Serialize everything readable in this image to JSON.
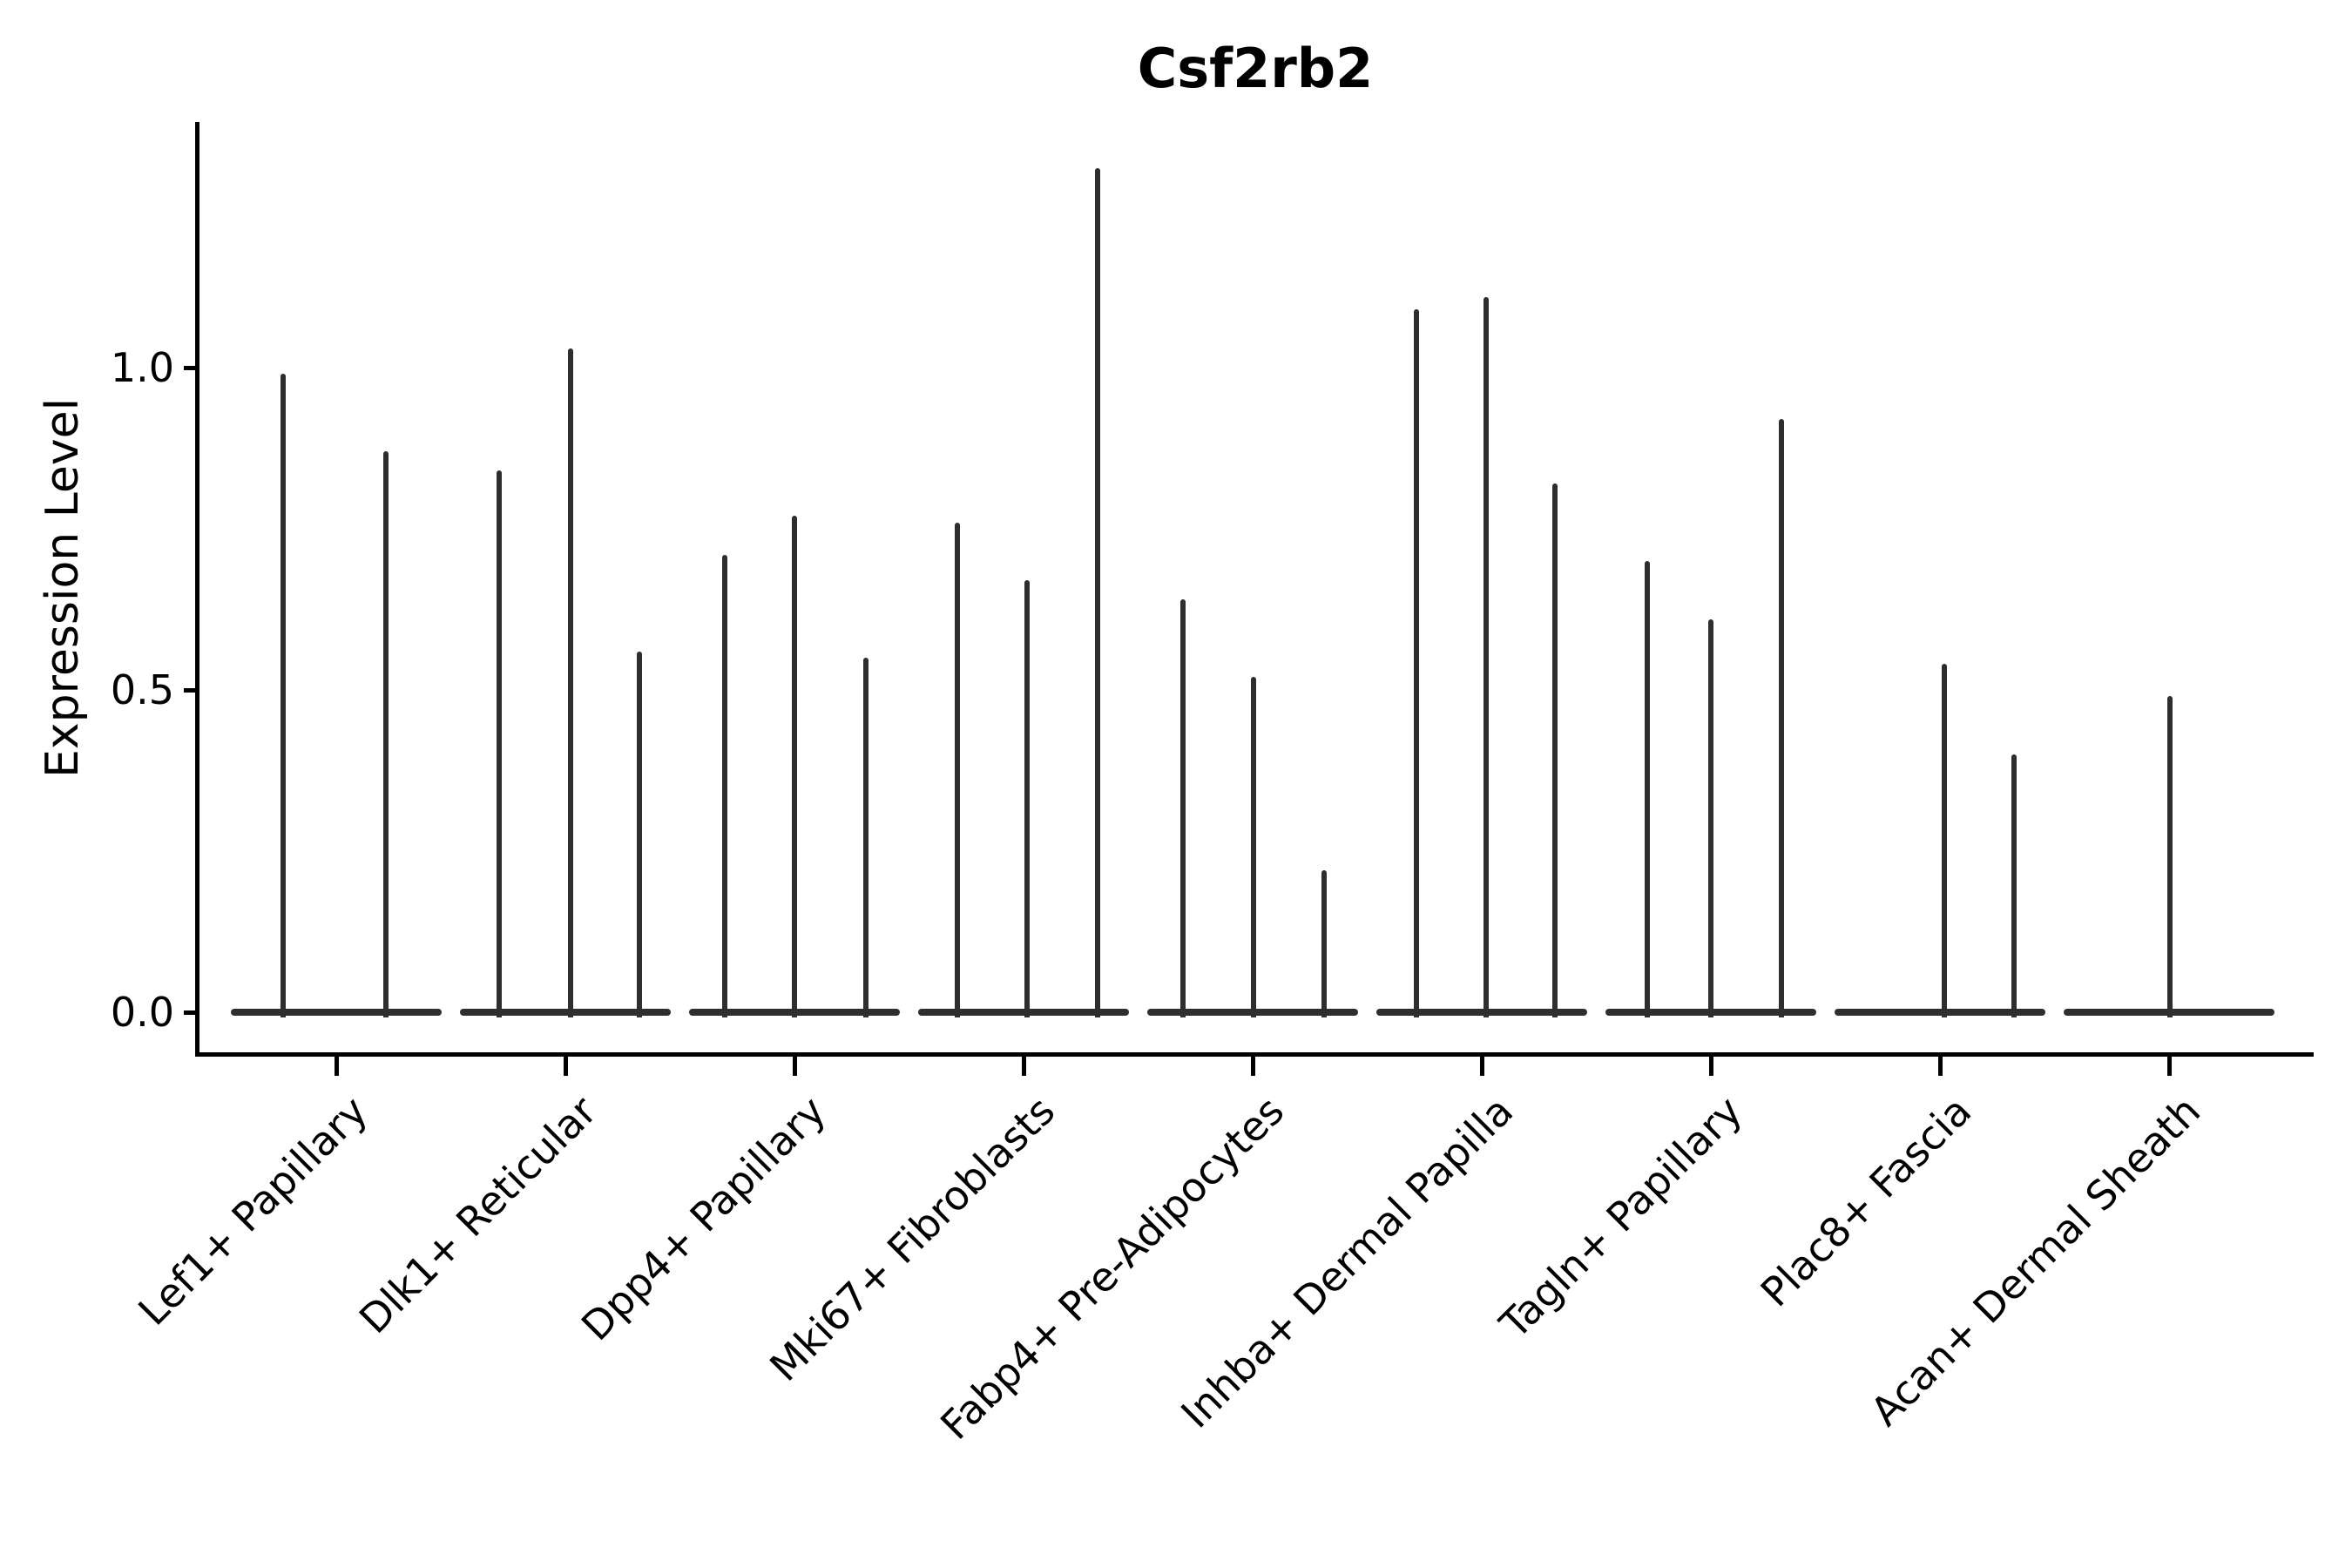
{
  "title": "Csf2rb2",
  "chart_data": {
    "type": "violin",
    "title": "Csf2rb2",
    "xlabel": "",
    "ylabel": "Expression Level",
    "ylim": [
      0,
      1.38
    ],
    "ytick_labels": [
      "0.0",
      "0.5",
      "1.0"
    ],
    "ytick_values": [
      0.0,
      0.5,
      1.0
    ],
    "grid": false,
    "legend": "none",
    "categories": [
      "Lef1+ Papillary",
      "Dlk1+ Reticular",
      "Dpp4+ Papillary",
      "Mki67+ Fibroblasts",
      "Fabp4+ Pre-Adipocytes",
      "Inhba+ Dermal Papilla",
      "Tagln+ Papillary",
      "Plac8+ Fascia",
      "Acan+ Dermal Sheath"
    ],
    "groups": [
      {
        "label": "Lef1+ Papillary",
        "violins": [
          {
            "value": 0.99,
            "dx": -61
          },
          {
            "value": 0.87,
            "dx": 57
          }
        ]
      },
      {
        "label": "Dlk1+ Reticular",
        "violins": [
          {
            "value": 0.84,
            "dx": -76
          },
          {
            "value": 1.03,
            "dx": 6
          },
          {
            "value": 0.56,
            "dx": 85
          }
        ]
      },
      {
        "label": "Dpp4+ Papillary",
        "violins": [
          {
            "value": 0.71,
            "dx": -80
          },
          {
            "value": 0.77,
            "dx": 0
          },
          {
            "value": 0.55,
            "dx": 82
          }
        ]
      },
      {
        "label": "Mki67+ Fibroblasts",
        "violins": [
          {
            "value": 0.76,
            "dx": -76
          },
          {
            "value": 0.67,
            "dx": 4
          },
          {
            "value": 1.31,
            "dx": 85
          }
        ]
      },
      {
        "label": "Fabp4+ Pre-Adipocytes",
        "violins": [
          {
            "value": 0.64,
            "dx": -80
          },
          {
            "value": 0.52,
            "dx": 1
          },
          {
            "value": 0.22,
            "dx": 82
          }
        ]
      },
      {
        "label": "Inhba+ Dermal Papilla",
        "violins": [
          {
            "value": 1.09,
            "dx": -75
          },
          {
            "value": 1.11,
            "dx": 5
          },
          {
            "value": 0.82,
            "dx": 84
          }
        ]
      },
      {
        "label": "Tagln+ Papillary",
        "violins": [
          {
            "value": 0.7,
            "dx": -73
          },
          {
            "value": 0.61,
            "dx": 0
          },
          {
            "value": 0.92,
            "dx": 81
          }
        ]
      },
      {
        "label": "Plac8+ Fascia",
        "violins": [
          {
            "value": 0.54,
            "dx": 5
          },
          {
            "value": 0.4,
            "dx": 85
          }
        ]
      },
      {
        "label": "Acan+ Dermal Sheath",
        "violins": [
          {
            "value": 0.49,
            "dx": 1
          }
        ]
      }
    ],
    "colors": {
      "violin": "#2e2e2e",
      "spine": "#000000",
      "text": "#000000",
      "background": "#ffffff"
    }
  }
}
